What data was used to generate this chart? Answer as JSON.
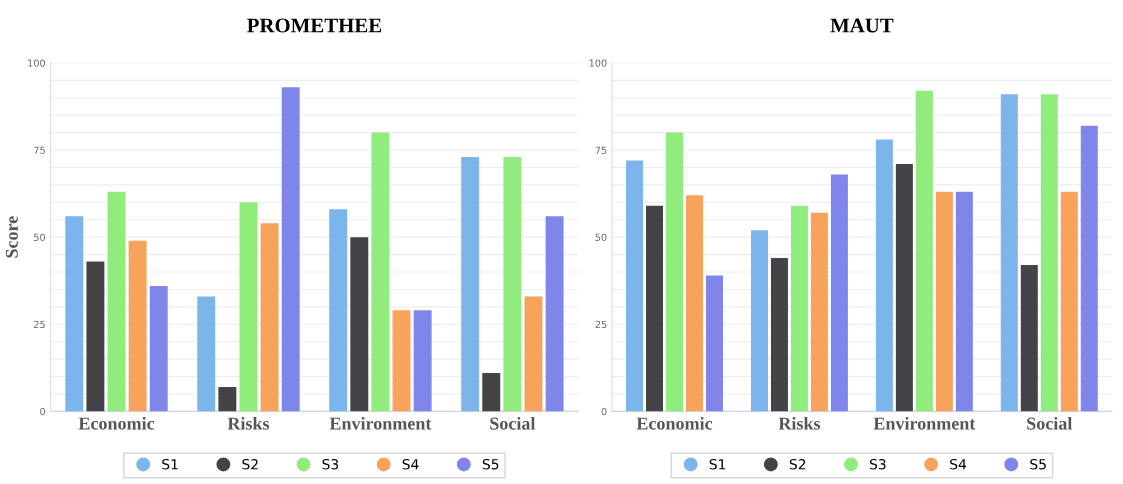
{
  "chart_data": [
    {
      "type": "bar",
      "title": "PROMETHEE",
      "ylabel": "Score",
      "categories": [
        "Economic",
        "Risks",
        "Environment",
        "Social"
      ],
      "ylim": [
        0,
        100
      ],
      "yticks": [
        0,
        {
          "value": 5,
          "label": null
        },
        {
          "value": 10,
          "label": null
        },
        {
          "value": 15,
          "label": null
        },
        {
          "value": 20,
          "label": null
        },
        25,
        {
          "value": 30,
          "label": null
        },
        {
          "value": 35,
          "label": null
        },
        {
          "value": 40,
          "label": null
        },
        {
          "value": 45,
          "label": null
        },
        50,
        {
          "value": 55,
          "label": null
        },
        {
          "value": 60,
          "label": null
        },
        {
          "value": 65,
          "label": null
        },
        {
          "value": 70,
          "label": null
        },
        75,
        {
          "value": 80,
          "label": null
        },
        {
          "value": 85,
          "label": null
        },
        {
          "value": 90,
          "label": null
        },
        {
          "value": 95,
          "label": null
        },
        100
      ],
      "grid": "y",
      "legend": "bottom",
      "series": [
        {
          "name": "S1",
          "color": "#7cb5ec",
          "values": [
            56,
            33,
            58,
            73
          ]
        },
        {
          "name": "S2",
          "color": "#434348",
          "values": [
            43,
            7,
            50,
            11
          ]
        },
        {
          "name": "S3",
          "color": "#90ed7d",
          "values": [
            63,
            60,
            80,
            73
          ]
        },
        {
          "name": "S4",
          "color": "#f7a35c",
          "values": [
            49,
            54,
            29,
            33
          ]
        },
        {
          "name": "S5",
          "color": "#8085e9",
          "values": [
            36,
            93,
            29,
            56
          ]
        }
      ]
    },
    {
      "type": "bar",
      "title": "MAUT",
      "categories": [
        "Economic",
        "Risks",
        "Environment",
        "Social"
      ],
      "ylim": [
        0,
        100
      ],
      "yticks": [
        0,
        {
          "value": 5,
          "label": null
        },
        {
          "value": 10,
          "label": null
        },
        {
          "value": 15,
          "label": null
        },
        {
          "value": 20,
          "label": null
        },
        25,
        {
          "value": 30,
          "label": null
        },
        {
          "value": 35,
          "label": null
        },
        {
          "value": 40,
          "label": null
        },
        {
          "value": 45,
          "label": null
        },
        50,
        {
          "value": 55,
          "label": null
        },
        {
          "value": 60,
          "label": null
        },
        {
          "value": 65,
          "label": null
        },
        {
          "value": 70,
          "label": null
        },
        75,
        {
          "value": 80,
          "label": null
        },
        {
          "value": 85,
          "label": null
        },
        {
          "value": 90,
          "label": null
        },
        {
          "value": 95,
          "label": null
        },
        100
      ],
      "grid": "y",
      "legend": "bottom",
      "series": [
        {
          "name": "S1",
          "color": "#7cb5ec",
          "values": [
            72,
            52,
            78,
            91
          ]
        },
        {
          "name": "S2",
          "color": "#434348",
          "values": [
            59,
            44,
            71,
            42
          ]
        },
        {
          "name": "S3",
          "color": "#90ed7d",
          "values": [
            80,
            59,
            92,
            91
          ]
        },
        {
          "name": "S4",
          "color": "#f7a35c",
          "values": [
            62,
            57,
            63,
            63
          ]
        },
        {
          "name": "S5",
          "color": "#8085e9",
          "values": [
            39,
            68,
            63,
            82
          ]
        }
      ]
    }
  ]
}
